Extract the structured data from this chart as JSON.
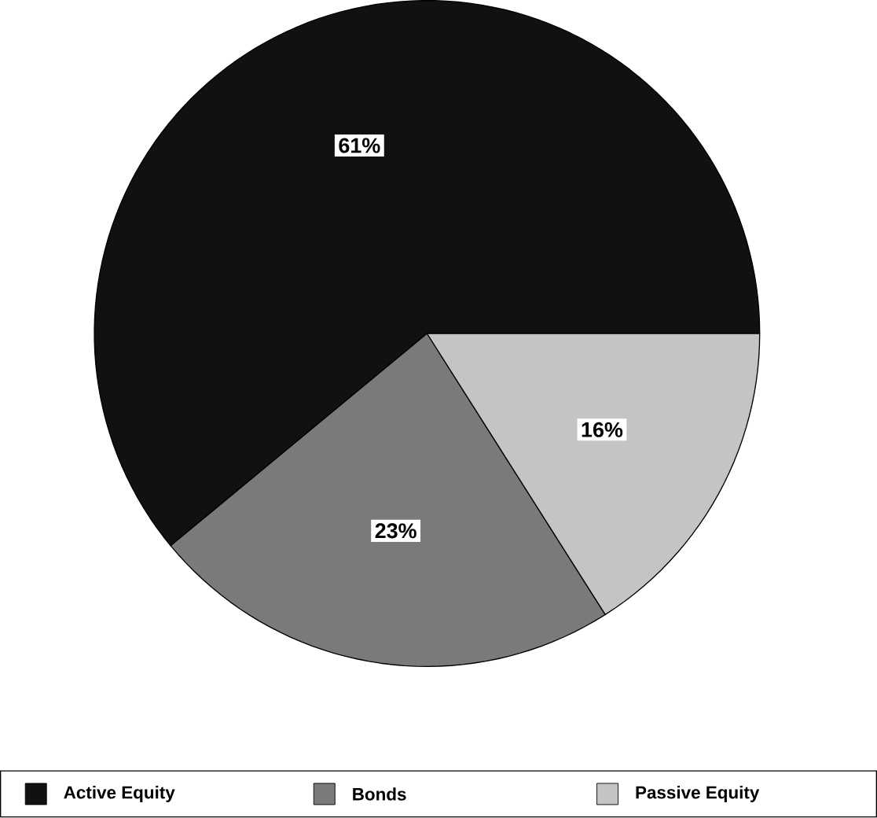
{
  "chart_data": {
    "type": "pie",
    "categories": [
      "Active Equity",
      "Bonds",
      "Passive Equity"
    ],
    "values": [
      61,
      23,
      16
    ],
    "value_labels": [
      "61%",
      "23%",
      "16%"
    ],
    "colors": [
      "#111111",
      "#7a7a7a",
      "#c4c4c4"
    ],
    "legend": "bottom"
  }
}
